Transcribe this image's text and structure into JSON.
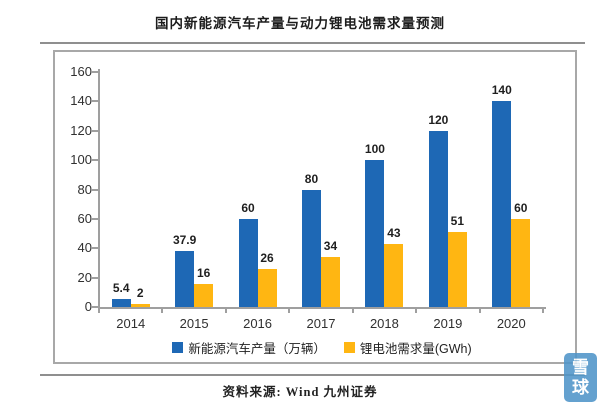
{
  "page": {
    "title": "国内新能源汽车产量与动力锂电池需求量预测",
    "source": "资料来源: Wind  九州证券",
    "watermark": {
      "line1": "雪",
      "line2": "球"
    }
  },
  "chart_data": {
    "type": "bar",
    "title": "国内新能源汽车产量与动力锂电池需求量预测",
    "categories": [
      "2014",
      "2015",
      "2016",
      "2017",
      "2018",
      "2019",
      "2020"
    ],
    "series": [
      {
        "name": "新能源汽车产量（万辆）",
        "color": "#1e68b5",
        "values": [
          5.4,
          37.9,
          60,
          80,
          100,
          120,
          140
        ]
      },
      {
        "name": "锂电池需求量(GWh)",
        "color": "#ffb612",
        "values": [
          2,
          16,
          26,
          34,
          43,
          51,
          60
        ]
      }
    ],
    "xlabel": "",
    "ylabel": "",
    "ylim": [
      0,
      160
    ],
    "ytick_step": 20,
    "grid": false,
    "legend_position": "bottom",
    "value_labels": true,
    "source_text": "资料来源: Wind  九州证券"
  }
}
